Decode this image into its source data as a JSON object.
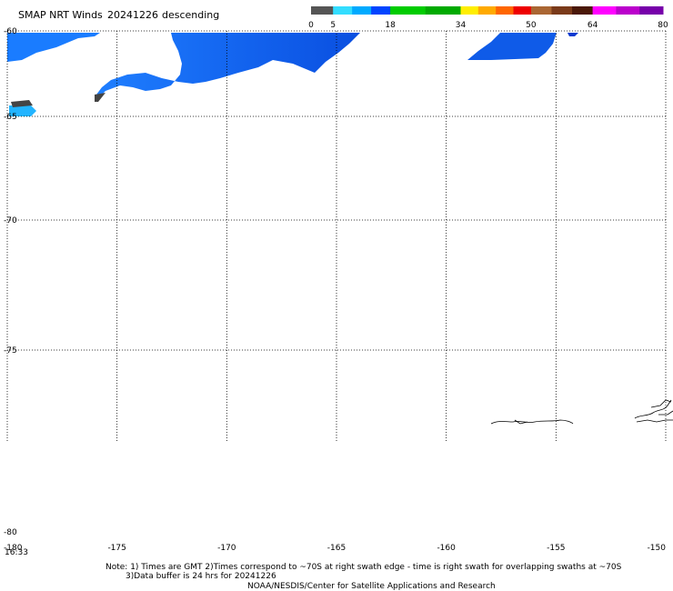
{
  "header": {
    "title": "SMAP NRT Winds",
    "date": "20241226",
    "pass": "descending"
  },
  "colorbar": {
    "segments": [
      {
        "from": 0,
        "to": 5,
        "color": "#555555"
      },
      {
        "from": 5,
        "to": 18,
        "color": "#2277ff"
      },
      {
        "from": 18,
        "to": 34,
        "color": "#00aa00"
      },
      {
        "from": 34,
        "to": 50,
        "color": "#ff3300"
      },
      {
        "from": 50,
        "to": 64,
        "color": "#7a3a1a"
      },
      {
        "from": 64,
        "to": 80,
        "color": "#bb00cc"
      }
    ],
    "tick_labels": [
      "0",
      "5",
      "18",
      "34",
      "50",
      "64",
      "80"
    ],
    "tick_values": [
      0,
      5,
      18,
      34,
      50,
      64,
      80
    ]
  },
  "map": {
    "lon_range": [
      -180,
      -150
    ],
    "lat_range": [
      -80,
      -60
    ],
    "lon_ticks": [
      {
        "value": -180,
        "label": "-180"
      },
      {
        "value": -175,
        "label": "-175"
      },
      {
        "value": -170,
        "label": "-170"
      },
      {
        "value": -165,
        "label": "-165"
      },
      {
        "value": -160,
        "label": "-160"
      },
      {
        "value": -155,
        "label": "-155"
      },
      {
        "value": -150,
        "label": "-150"
      }
    ],
    "lat_ticks": [
      {
        "value": -60,
        "label": "-60"
      },
      {
        "value": -65,
        "label": "-65"
      },
      {
        "value": -70,
        "label": "-70"
      },
      {
        "value": -75,
        "label": "-75"
      },
      {
        "value": -80,
        "label": "-80"
      }
    ],
    "gridlines": "dotted",
    "time_label": "16:33",
    "land_color": "#ffffff",
    "wind_color": "#1a88ff",
    "coast_color": "#000000"
  },
  "footer": {
    "line1": "Note: 1) Times are GMT 2)Times correspond to ~70S at right swath edge - time is right swath for overlapping swaths at ~70S",
    "line2": "3)Data buffer is 24 hrs for 20241226",
    "line3": "NOAA/NESDIS/Center for Satellite Applications and Research"
  }
}
